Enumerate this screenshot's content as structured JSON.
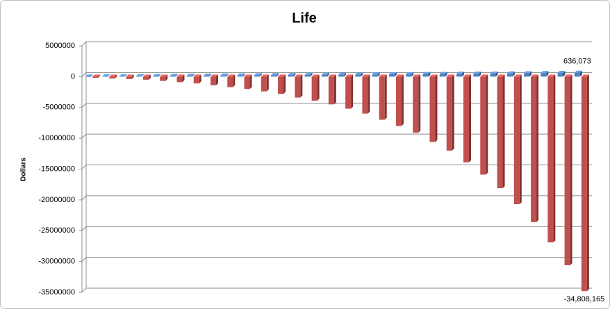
{
  "chart_data": {
    "type": "bar3d",
    "title": "Life",
    "y_label": "Dollars",
    "categories": [
      null,
      null,
      null,
      null,
      null,
      null,
      null,
      null,
      null,
      null,
      null,
      null,
      null,
      null,
      null,
      null,
      null,
      null,
      null,
      null,
      null,
      null,
      null,
      null,
      null,
      null,
      null,
      null,
      null,
      null
    ],
    "series": [
      {
        "color": "#4f81bd",
        "values": [
          20000,
          40000,
          60000,
          80000,
          100000,
          120000,
          140000,
          160000,
          180000,
          200000,
          220000,
          240000,
          260000,
          280000,
          300000,
          320000,
          340000,
          360000,
          380000,
          400000,
          420000,
          440000,
          460000,
          480000,
          500000,
          520000,
          550000,
          580000,
          610000,
          636073
        ],
        "value_labels": [
          null,
          null,
          null,
          null,
          null,
          null,
          null,
          null,
          null,
          null,
          null,
          null,
          null,
          null,
          null,
          null,
          null,
          null,
          null,
          null,
          null,
          null,
          null,
          null,
          null,
          null,
          null,
          null,
          null,
          "636,073"
        ]
      },
      {
        "color": "#c0504d",
        "values": [
          -200000,
          -300000,
          -400000,
          -500000,
          -700000,
          -900000,
          -1100000,
          -1400000,
          -1700000,
          -2000000,
          -2400000,
          -2800000,
          -3400000,
          -3900000,
          -4500000,
          -5200000,
          -6000000,
          -7000000,
          -8000000,
          -9100000,
          -10600000,
          -12000000,
          -13900000,
          -15900000,
          -18100000,
          -20700000,
          -23600000,
          -26900000,
          -30600000,
          -34808165
        ],
        "value_labels": [
          null,
          null,
          null,
          null,
          null,
          null,
          null,
          null,
          null,
          null,
          null,
          null,
          null,
          null,
          null,
          null,
          null,
          null,
          null,
          null,
          null,
          null,
          null,
          null,
          null,
          null,
          null,
          null,
          null,
          "-34,808,165"
        ]
      }
    ],
    "ylim": [
      -35000000,
      5000000
    ],
    "yticks": [
      5000000,
      0,
      -5000000,
      -10000000,
      -15000000,
      -20000000,
      -25000000,
      -30000000,
      -35000000
    ],
    "grid": true
  }
}
